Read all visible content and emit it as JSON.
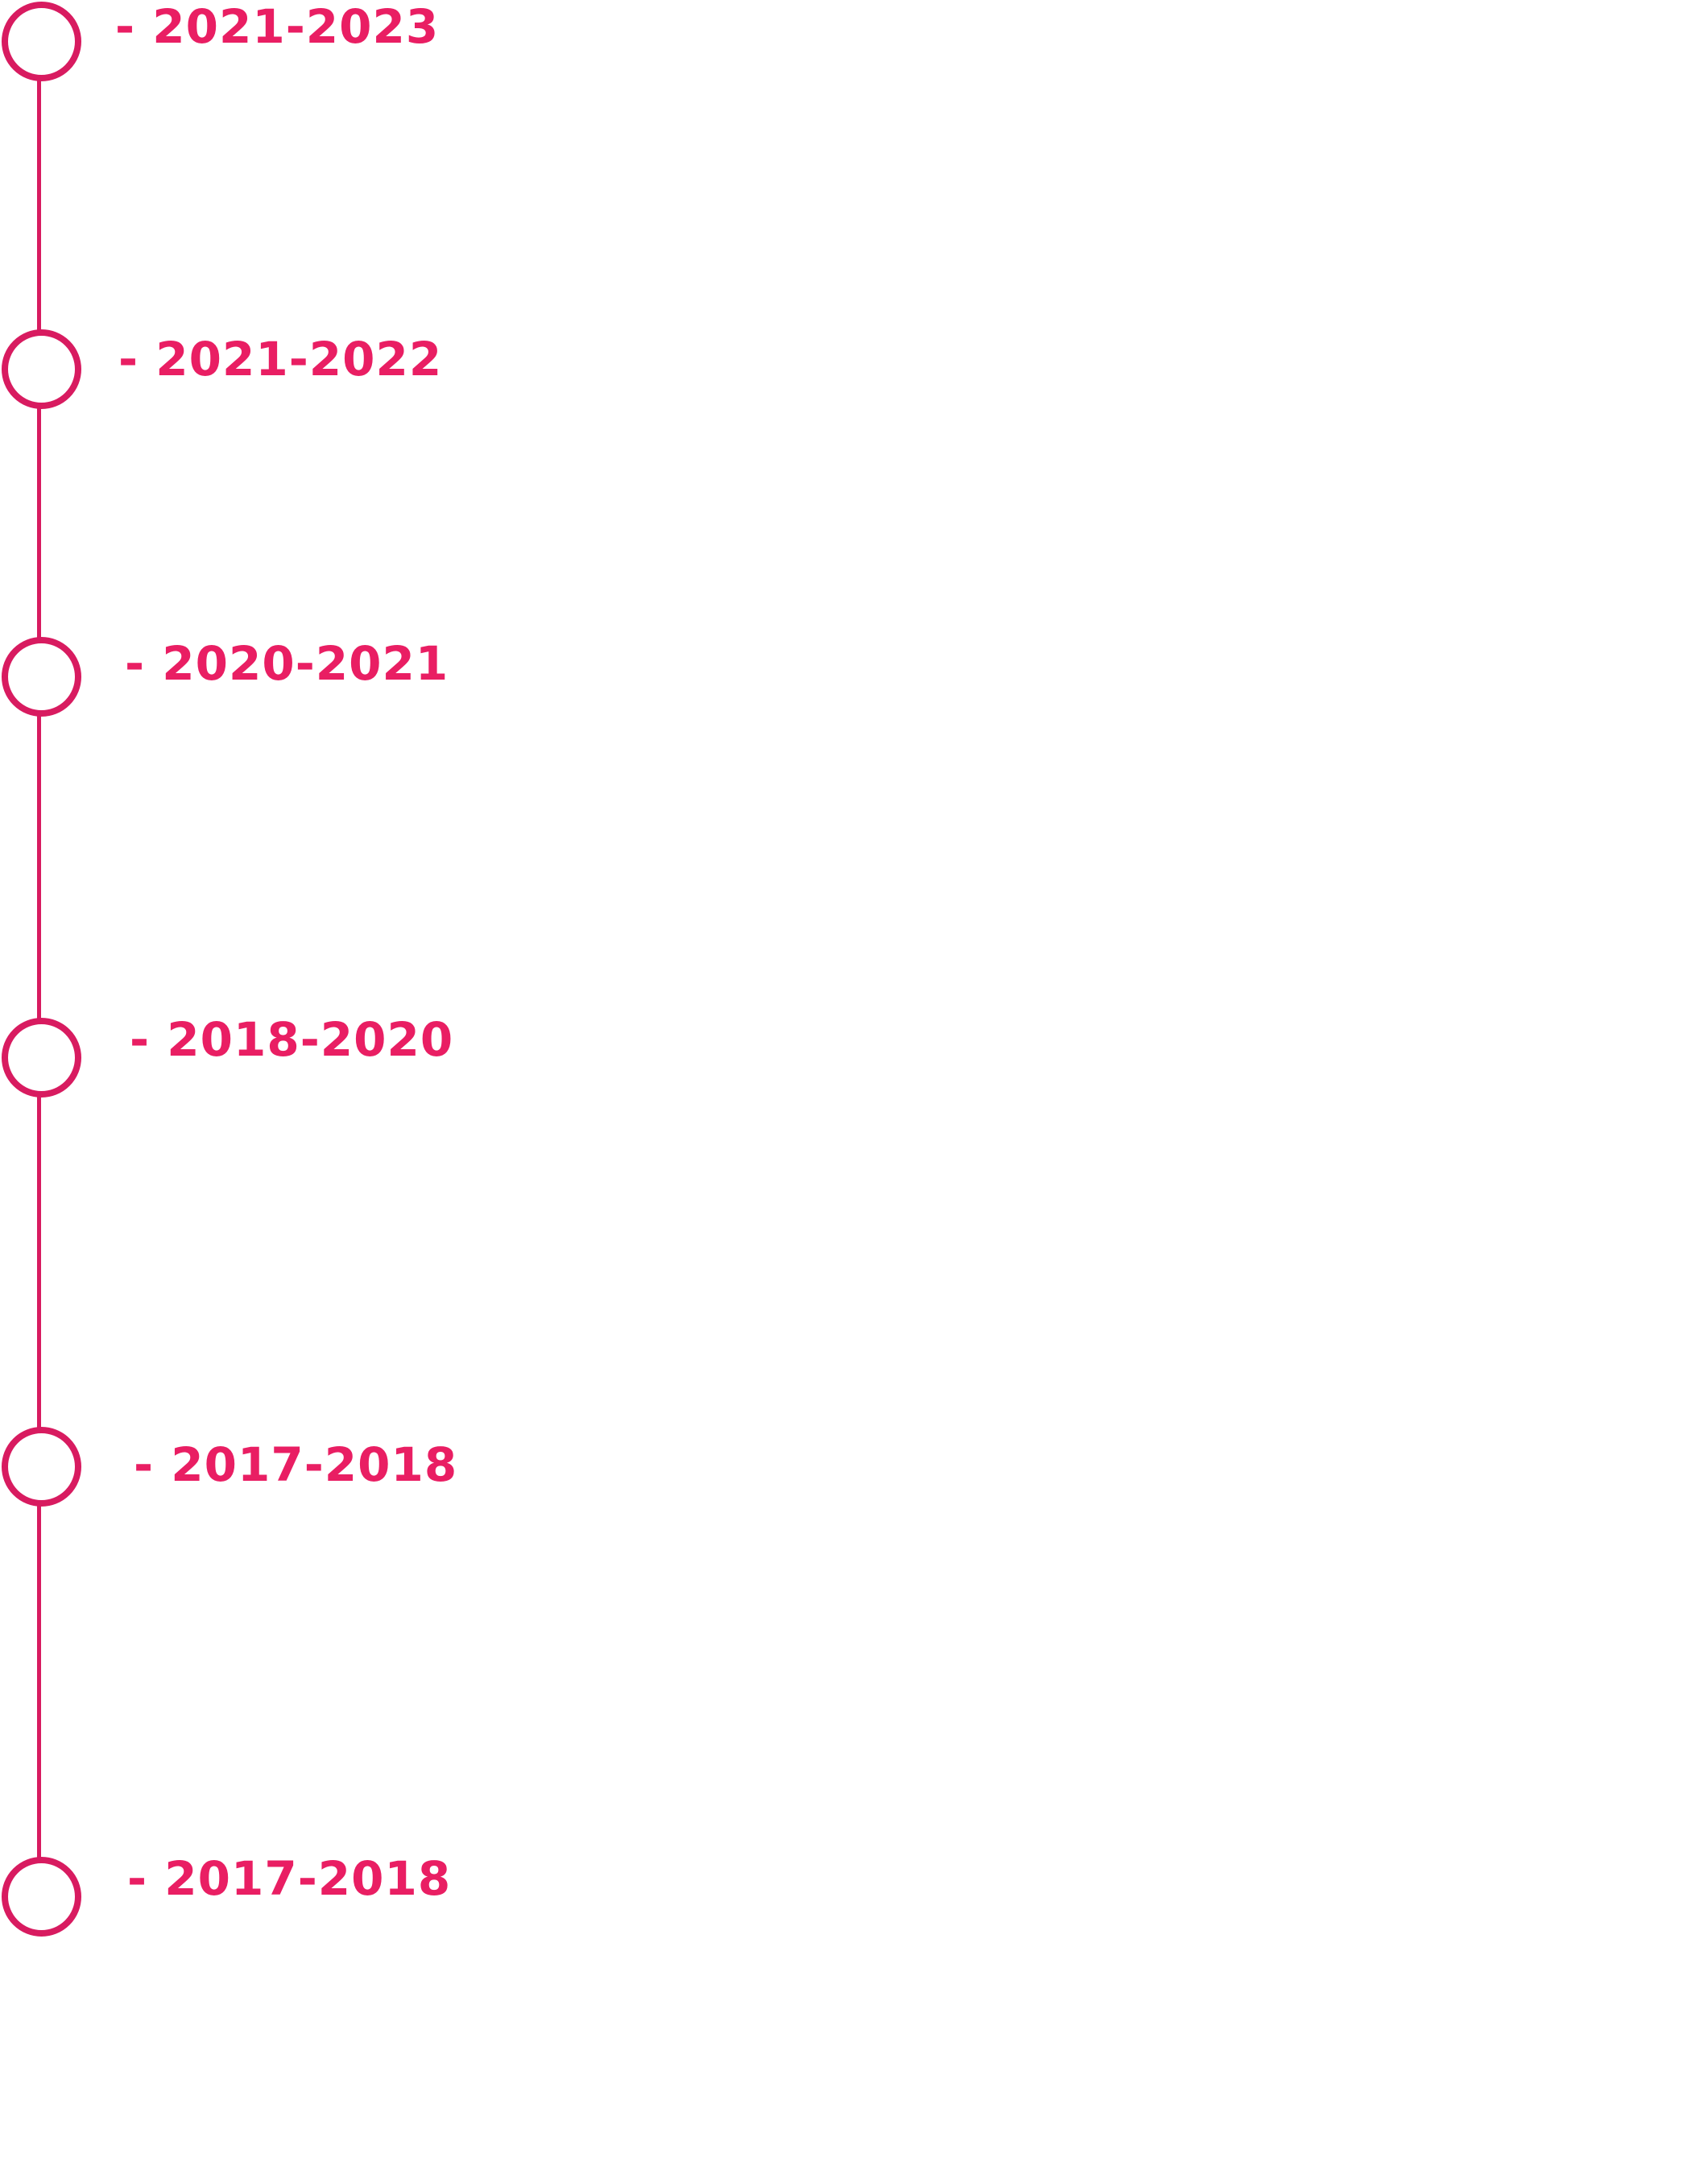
{
  "colors": {
    "accent": "#d81b60",
    "label": "#e91e63",
    "background": "#ffffff"
  },
  "timeline": {
    "items": [
      {
        "label": "- 2021-2023"
      },
      {
        "label": "- 2021-2022"
      },
      {
        "label": "- 2020-2021"
      },
      {
        "label": "- 2018-2020"
      },
      {
        "label": "- 2017-2018"
      },
      {
        "label": "- 2017-2018"
      }
    ]
  }
}
